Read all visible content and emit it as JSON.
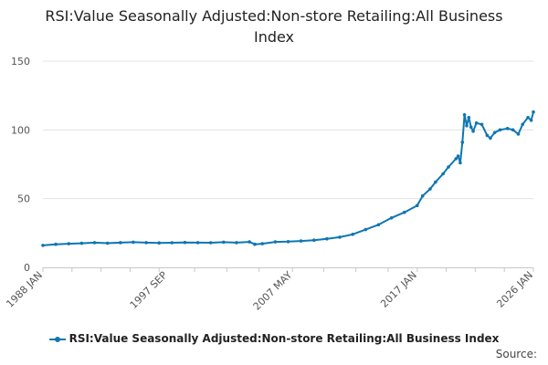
{
  "chart_data": {
    "type": "line",
    "title": "RSI:Value Seasonally Adjusted:Non-store Retailing:All Business Index",
    "xlabel": "",
    "ylabel": "",
    "ylim": [
      0,
      150
    ],
    "yticks": [
      0,
      50,
      100,
      150
    ],
    "xtick_labels": [
      "1988 JAN",
      "1997 SEP",
      "2007 MAY",
      "2017 JAN",
      "2026 JAN"
    ],
    "grid": "horizontal",
    "legend_position": "bottom",
    "series": [
      {
        "name": "RSI:Value Seasonally Adjusted:Non-store Retailing:All Business Index",
        "color": "#0e76b3",
        "points": [
          [
            "1988-01",
            16
          ],
          [
            "1989-01",
            16.8
          ],
          [
            "1990-01",
            17.2
          ],
          [
            "1991-01",
            17.5
          ],
          [
            "1992-01",
            18
          ],
          [
            "1993-01",
            17.6
          ],
          [
            "1994-01",
            18
          ],
          [
            "1995-01",
            18.3
          ],
          [
            "1996-01",
            18
          ],
          [
            "1997-01",
            17.8
          ],
          [
            "1998-01",
            17.9
          ],
          [
            "1999-01",
            18.1
          ],
          [
            "2000-01",
            18
          ],
          [
            "2001-01",
            17.9
          ],
          [
            "2002-01",
            18.3
          ],
          [
            "2003-01",
            18
          ],
          [
            "2004-01",
            18.5
          ],
          [
            "2004-06",
            16.8
          ],
          [
            "2005-01",
            17.2
          ],
          [
            "2006-01",
            18.5
          ],
          [
            "2007-01",
            18.7
          ],
          [
            "2008-01",
            19.2
          ],
          [
            "2009-01",
            19.8
          ],
          [
            "2010-01",
            20.8
          ],
          [
            "2011-01",
            22
          ],
          [
            "2012-01",
            24
          ],
          [
            "2013-01",
            27.5
          ],
          [
            "2014-01",
            31
          ],
          [
            "2015-01",
            36
          ],
          [
            "2016-01",
            40
          ],
          [
            "2017-01",
            45
          ],
          [
            "2017-06",
            52
          ],
          [
            "2018-01",
            57
          ],
          [
            "2018-06",
            62
          ],
          [
            "2019-01",
            68
          ],
          [
            "2019-06",
            73
          ],
          [
            "2020-01",
            79
          ],
          [
            "2020-03",
            81
          ],
          [
            "2020-05",
            76
          ],
          [
            "2020-07",
            91
          ],
          [
            "2020-09",
            111
          ],
          [
            "2020-11",
            103
          ],
          [
            "2021-01",
            109
          ],
          [
            "2021-03",
            102
          ],
          [
            "2021-05",
            99
          ],
          [
            "2021-08",
            105
          ],
          [
            "2022-01",
            104
          ],
          [
            "2022-06",
            96
          ],
          [
            "2022-09",
            94
          ],
          [
            "2023-01",
            98
          ],
          [
            "2023-06",
            100
          ],
          [
            "2024-01",
            101
          ],
          [
            "2024-06",
            100
          ],
          [
            "2024-11",
            97
          ],
          [
            "2025-03",
            104
          ],
          [
            "2025-08",
            109
          ],
          [
            "2025-11",
            107
          ],
          [
            "2026-01",
            113
          ]
        ]
      }
    ]
  },
  "source_label": "Source:"
}
